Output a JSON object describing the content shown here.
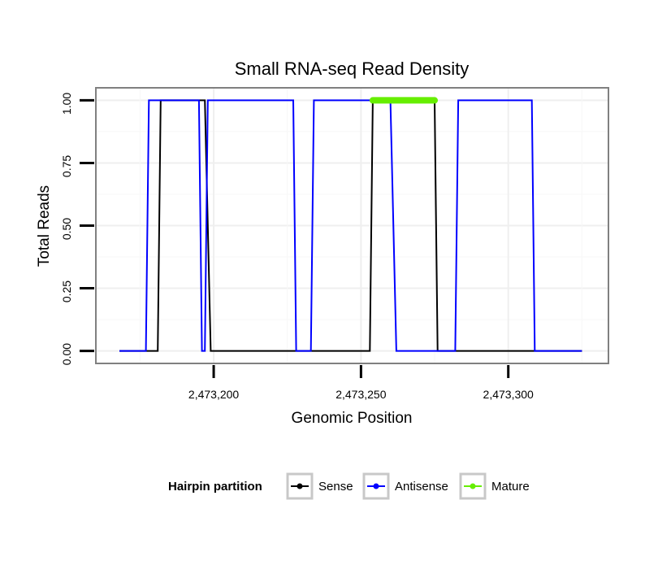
{
  "chart_data": {
    "type": "line",
    "title": "Small RNA-seq Read Density",
    "xlabel": "Genomic Position",
    "ylabel": "Total Reads",
    "xlim": [
      2473160,
      2473334
    ],
    "ylim": [
      -0.05,
      1.05
    ],
    "x_ticks": [
      2473200,
      2473250,
      2473300
    ],
    "x_tick_labels": [
      "2,473,200",
      "2,473,250",
      "2,473,300"
    ],
    "y_ticks": [
      0,
      0.25,
      0.5,
      0.75,
      1.0
    ],
    "y_tick_labels": [
      "0.00",
      "0.25",
      "0.50",
      "0.75",
      "1.00"
    ],
    "grid": true,
    "legend": {
      "title": "Hairpin partition",
      "position": "bottom",
      "items": [
        {
          "label": "Sense",
          "color": "#000000"
        },
        {
          "label": "Antisense",
          "color": "#0000ff"
        },
        {
          "label": "Mature",
          "color": "#66ee00"
        }
      ]
    },
    "series": [
      {
        "name": "Sense",
        "color": "#000000",
        "x": [
          2473168,
          2473181,
          2473182,
          2473197,
          2473199,
          2473253,
          2473254,
          2473275,
          2473276,
          2473325
        ],
        "y": [
          0,
          0,
          1,
          1,
          0,
          0,
          1,
          1,
          0,
          0
        ]
      },
      {
        "name": "Antisense",
        "color": "#0000ff",
        "x": [
          2473168,
          2473177,
          2473178,
          2473195,
          2473196,
          2473197,
          2473198,
          2473227,
          2473228,
          2473233,
          2473234,
          2473260,
          2473262,
          2473282,
          2473283,
          2473308,
          2473309,
          2473325
        ],
        "y": [
          0,
          0,
          1,
          1,
          0,
          0,
          1,
          1,
          0,
          0,
          1,
          1,
          0,
          0,
          1,
          1,
          0,
          0
        ]
      },
      {
        "name": "Mature",
        "color": "#66ee00",
        "x": [
          2473254,
          2473275
        ],
        "y": [
          1,
          1
        ]
      }
    ]
  }
}
